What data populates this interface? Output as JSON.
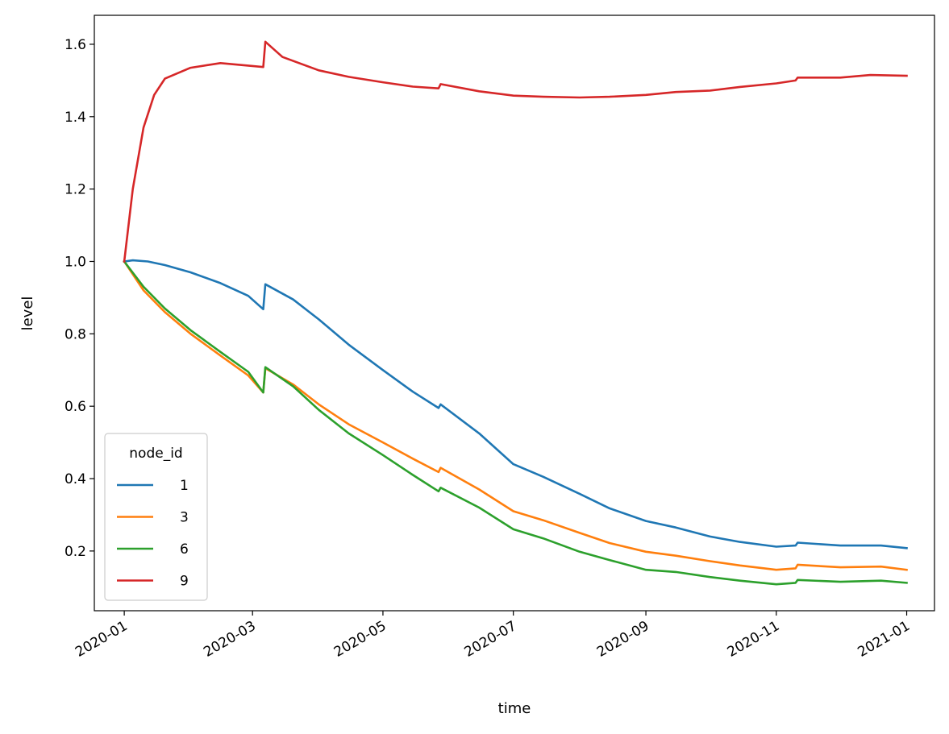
{
  "chart_data": {
    "type": "line",
    "xlabel": "time",
    "ylabel": "level",
    "xlim": [
      "2019-12-18",
      "2021-01-14"
    ],
    "ylim": [
      0.035,
      1.68
    ],
    "x_ticks": [
      "2020-01",
      "2020-03",
      "2020-05",
      "2020-07",
      "2020-09",
      "2020-11",
      "2021-01"
    ],
    "y_ticks": [
      0.2,
      0.4,
      0.6,
      0.8,
      1.0,
      1.2,
      1.4,
      1.6
    ],
    "grid": false,
    "legend": {
      "title": "node_id",
      "placement": "lower-left"
    },
    "series": [
      {
        "name": "1",
        "color": "#1f77b4",
        "points": [
          [
            "2020-01-01",
            1.0
          ],
          [
            "2020-01-05",
            1.003
          ],
          [
            "2020-01-12",
            1.0
          ],
          [
            "2020-01-20",
            0.99
          ],
          [
            "2020-02-01",
            0.97
          ],
          [
            "2020-02-15",
            0.94
          ],
          [
            "2020-02-28",
            0.905
          ],
          [
            "2020-03-06",
            0.868
          ],
          [
            "2020-03-07",
            0.937
          ],
          [
            "2020-03-20",
            0.895
          ],
          [
            "2020-04-01",
            0.84
          ],
          [
            "2020-04-15",
            0.77
          ],
          [
            "2020-05-01",
            0.7
          ],
          [
            "2020-05-15",
            0.64
          ],
          [
            "2020-05-27",
            0.595
          ],
          [
            "2020-05-28",
            0.605
          ],
          [
            "2020-06-15",
            0.525
          ],
          [
            "2020-07-01",
            0.44
          ],
          [
            "2020-07-15",
            0.405
          ],
          [
            "2020-08-01",
            0.358
          ],
          [
            "2020-08-15",
            0.318
          ],
          [
            "2020-09-01",
            0.283
          ],
          [
            "2020-09-15",
            0.265
          ],
          [
            "2020-10-01",
            0.24
          ],
          [
            "2020-10-15",
            0.225
          ],
          [
            "2020-11-01",
            0.212
          ],
          [
            "2020-11-10",
            0.215
          ],
          [
            "2020-11-11",
            0.223
          ],
          [
            "2020-12-01",
            0.215
          ],
          [
            "2020-12-20",
            0.215
          ],
          [
            "2021-01-01",
            0.208
          ]
        ]
      },
      {
        "name": "3",
        "color": "#ff7f0e",
        "points": [
          [
            "2020-01-01",
            1.0
          ],
          [
            "2020-01-10",
            0.92
          ],
          [
            "2020-01-20",
            0.86
          ],
          [
            "2020-02-01",
            0.8
          ],
          [
            "2020-02-15",
            0.74
          ],
          [
            "2020-02-28",
            0.685
          ],
          [
            "2020-03-06",
            0.638
          ],
          [
            "2020-03-07",
            0.705
          ],
          [
            "2020-03-20",
            0.66
          ],
          [
            "2020-04-01",
            0.605
          ],
          [
            "2020-04-15",
            0.55
          ],
          [
            "2020-05-01",
            0.5
          ],
          [
            "2020-05-15",
            0.455
          ],
          [
            "2020-05-27",
            0.418
          ],
          [
            "2020-05-28",
            0.43
          ],
          [
            "2020-06-15",
            0.37
          ],
          [
            "2020-07-01",
            0.31
          ],
          [
            "2020-07-15",
            0.285
          ],
          [
            "2020-08-01",
            0.25
          ],
          [
            "2020-08-15",
            0.222
          ],
          [
            "2020-09-01",
            0.198
          ],
          [
            "2020-09-15",
            0.187
          ],
          [
            "2020-10-01",
            0.172
          ],
          [
            "2020-10-15",
            0.16
          ],
          [
            "2020-11-01",
            0.148
          ],
          [
            "2020-11-10",
            0.152
          ],
          [
            "2020-11-11",
            0.162
          ],
          [
            "2020-12-01",
            0.155
          ],
          [
            "2020-12-20",
            0.157
          ],
          [
            "2021-01-01",
            0.148
          ]
        ]
      },
      {
        "name": "6",
        "color": "#2ca02c",
        "points": [
          [
            "2020-01-01",
            1.0
          ],
          [
            "2020-01-10",
            0.93
          ],
          [
            "2020-01-20",
            0.87
          ],
          [
            "2020-02-01",
            0.81
          ],
          [
            "2020-02-15",
            0.75
          ],
          [
            "2020-02-28",
            0.695
          ],
          [
            "2020-03-06",
            0.638
          ],
          [
            "2020-03-07",
            0.708
          ],
          [
            "2020-03-20",
            0.655
          ],
          [
            "2020-04-01",
            0.59
          ],
          [
            "2020-04-15",
            0.525
          ],
          [
            "2020-05-01",
            0.465
          ],
          [
            "2020-05-15",
            0.41
          ],
          [
            "2020-05-27",
            0.365
          ],
          [
            "2020-05-28",
            0.375
          ],
          [
            "2020-06-15",
            0.32
          ],
          [
            "2020-07-01",
            0.26
          ],
          [
            "2020-07-15",
            0.235
          ],
          [
            "2020-08-01",
            0.198
          ],
          [
            "2020-08-15",
            0.175
          ],
          [
            "2020-09-01",
            0.148
          ],
          [
            "2020-09-15",
            0.142
          ],
          [
            "2020-10-01",
            0.128
          ],
          [
            "2020-10-15",
            0.118
          ],
          [
            "2020-11-01",
            0.108
          ],
          [
            "2020-11-10",
            0.112
          ],
          [
            "2020-11-11",
            0.12
          ],
          [
            "2020-12-01",
            0.115
          ],
          [
            "2020-12-20",
            0.118
          ],
          [
            "2021-01-01",
            0.112
          ]
        ]
      },
      {
        "name": "9",
        "color": "#d62728",
        "points": [
          [
            "2020-01-01",
            1.0
          ],
          [
            "2020-01-05",
            1.2
          ],
          [
            "2020-01-10",
            1.37
          ],
          [
            "2020-01-15",
            1.46
          ],
          [
            "2020-01-20",
            1.505
          ],
          [
            "2020-02-01",
            1.535
          ],
          [
            "2020-02-15",
            1.548
          ],
          [
            "2020-03-01",
            1.54
          ],
          [
            "2020-03-06",
            1.537
          ],
          [
            "2020-03-07",
            1.607
          ],
          [
            "2020-03-15",
            1.565
          ],
          [
            "2020-04-01",
            1.528
          ],
          [
            "2020-04-15",
            1.51
          ],
          [
            "2020-05-01",
            1.495
          ],
          [
            "2020-05-15",
            1.483
          ],
          [
            "2020-05-27",
            1.478
          ],
          [
            "2020-05-28",
            1.49
          ],
          [
            "2020-06-15",
            1.47
          ],
          [
            "2020-07-01",
            1.458
          ],
          [
            "2020-07-15",
            1.455
          ],
          [
            "2020-08-01",
            1.453
          ],
          [
            "2020-08-15",
            1.455
          ],
          [
            "2020-09-01",
            1.46
          ],
          [
            "2020-09-15",
            1.468
          ],
          [
            "2020-10-01",
            1.472
          ],
          [
            "2020-10-15",
            1.482
          ],
          [
            "2020-11-01",
            1.492
          ],
          [
            "2020-11-10",
            1.5
          ],
          [
            "2020-11-11",
            1.508
          ],
          [
            "2020-12-01",
            1.508
          ],
          [
            "2020-12-15",
            1.515
          ],
          [
            "2021-01-01",
            1.513
          ]
        ]
      }
    ]
  }
}
